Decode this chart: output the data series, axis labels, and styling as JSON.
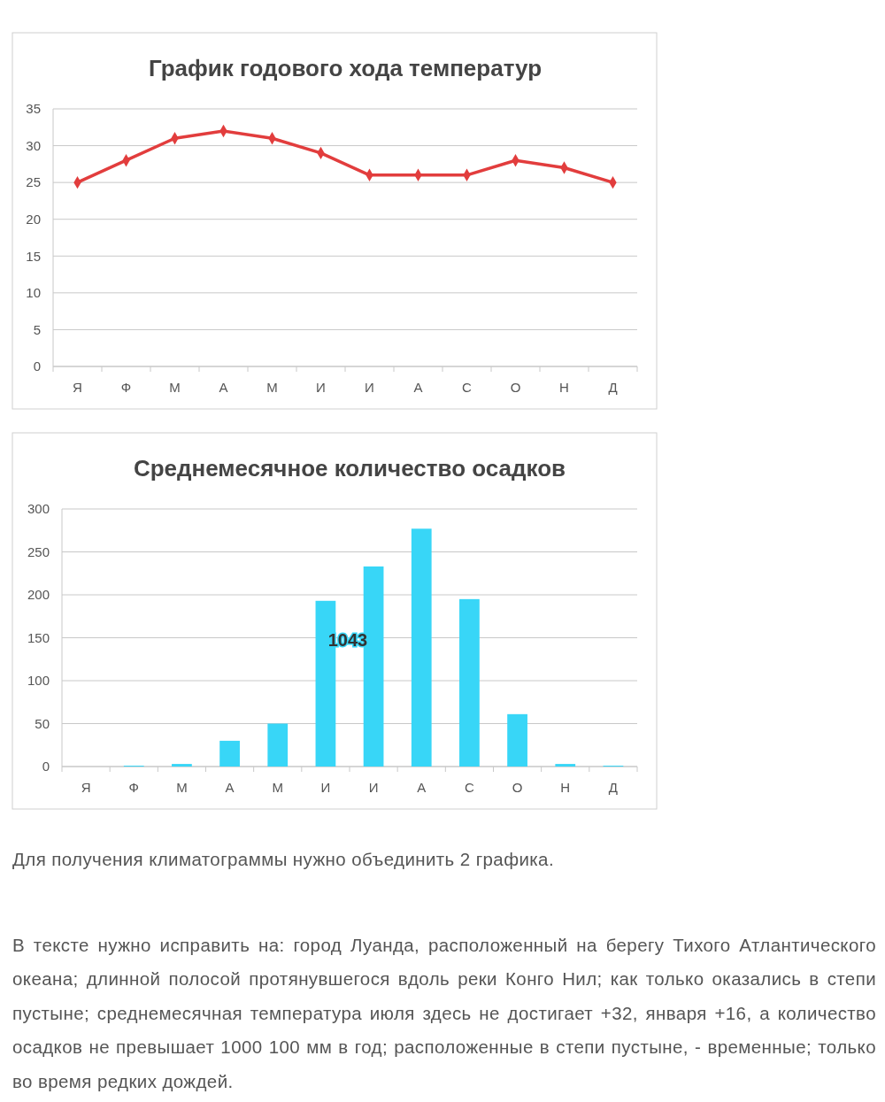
{
  "chart_data": [
    {
      "type": "line",
      "title": "График годового хода температур",
      "categories": [
        "Я",
        "Ф",
        "М",
        "А",
        "М",
        "И",
        "И",
        "А",
        "С",
        "О",
        "Н",
        "Д"
      ],
      "series": [
        {
          "color": "#e23d3d",
          "values": [
            25,
            28,
            31,
            32,
            31,
            29,
            26,
            26,
            26,
            28,
            27,
            25
          ]
        }
      ],
      "ylim": [
        0,
        35
      ],
      "yticks": [
        0,
        5,
        10,
        15,
        20,
        25,
        30,
        35
      ],
      "grid": "y",
      "marker": "diamond",
      "line_style": "solid"
    },
    {
      "type": "bar",
      "title": "Среднемесячное количество осадков",
      "categories": [
        "Я",
        "Ф",
        "М",
        "А",
        "М",
        "И",
        "И",
        "А",
        "С",
        "О",
        "Н",
        "Д"
      ],
      "values": [
        0,
        1,
        3,
        30,
        50,
        193,
        233,
        277,
        195,
        61,
        3,
        1
      ],
      "color": "#38d6f7",
      "ylim": [
        0,
        300
      ],
      "yticks": [
        0,
        50,
        100,
        150,
        200,
        250,
        300
      ],
      "grid": "y",
      "annotations": [
        "1043",
        "Для получения климатограммы нужно объединить 2 графика.",
        "В тексте нужно исправить на: город Луанда, расположенный на берегу Тихого Атлантического океана; длинной полосой протянувшегося вдоль реки Конго Нил; как только оказались в степи пустыне; среднемесячная температура июля здесь не достигает +32, января +16, а количество осадков не превышает 1000 100 мм в год; расположенные в степи пустыне, - временные; только во время редких дождей."
      ]
    }
  ]
}
